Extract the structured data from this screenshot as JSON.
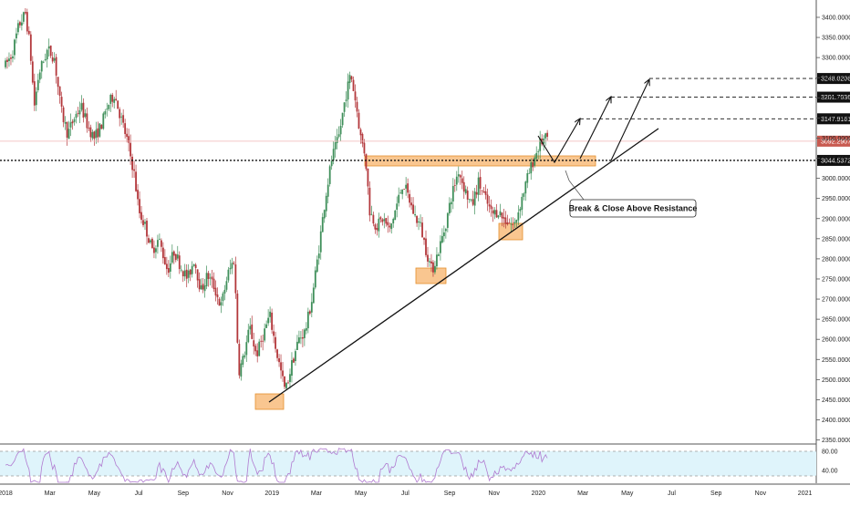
{
  "colors": {
    "up": "#3f8f5a",
    "down": "#b3373b",
    "zone_fill": "#f7b36b",
    "zone_stroke": "#e5902e",
    "rsi_fill": "#dff4fb",
    "rsi_line": "#b07ad0",
    "current_tag": "#c85a50",
    "level_tag": "#111111",
    "dotted_level": "#111111",
    "pink_level": "#f2b6b6"
  },
  "chart_data": {
    "type": "candlestick",
    "price_axis": {
      "ticks": [
        "3400.0000",
        "3350.0000",
        "3300.0000",
        "3250.0000",
        "3200.0000",
        "3150.0000",
        "3100.0000",
        "3050.0000",
        "3000.0000",
        "2950.0000",
        "2900.0000",
        "2850.0000",
        "2800.0000",
        "2750.0000",
        "2700.0000",
        "2650.0000",
        "2600.0000",
        "2550.0000",
        "2500.0000",
        "2450.0000",
        "2400.0000",
        "2350.0000"
      ],
      "range": [
        2340,
        3420
      ]
    },
    "time_axis": {
      "labels": [
        "2018",
        "Mar",
        "May",
        "Jul",
        "Sep",
        "Nov",
        "2019",
        "Mar",
        "May",
        "Jul",
        "Sep",
        "Nov",
        "2020",
        "Mar",
        "May",
        "Jul",
        "Sep",
        "Nov",
        "2021"
      ],
      "label_months": [
        0,
        2,
        4,
        6,
        8,
        10,
        12,
        14,
        16,
        18,
        20,
        22,
        24,
        26,
        28,
        30,
        32,
        34,
        36
      ]
    },
    "series": [
      {
        "type": "candles",
        "anchors": [
          [
            0.0,
            3280
          ],
          [
            0.3,
            3310
          ],
          [
            0.6,
            3380
          ],
          [
            0.9,
            3410
          ],
          [
            1.1,
            3330
          ],
          [
            1.3,
            3180
          ],
          [
            1.5,
            3260
          ],
          [
            1.9,
            3320
          ],
          [
            2.2,
            3300
          ],
          [
            2.5,
            3170
          ],
          [
            2.8,
            3110
          ],
          [
            3.1,
            3150
          ],
          [
            3.4,
            3180
          ],
          [
            3.7,
            3130
          ],
          [
            4.0,
            3100
          ],
          [
            4.3,
            3130
          ],
          [
            4.6,
            3180
          ],
          [
            4.9,
            3210
          ],
          [
            5.2,
            3150
          ],
          [
            5.5,
            3090
          ],
          [
            5.8,
            3010
          ],
          [
            6.0,
            2920
          ],
          [
            6.3,
            2880
          ],
          [
            6.6,
            2820
          ],
          [
            6.9,
            2850
          ],
          [
            7.3,
            2770
          ],
          [
            7.6,
            2820
          ],
          [
            7.9,
            2780
          ],
          [
            8.2,
            2750
          ],
          [
            8.5,
            2800
          ],
          [
            8.8,
            2720
          ],
          [
            9.1,
            2760
          ],
          [
            9.4,
            2730
          ],
          [
            9.7,
            2680
          ],
          [
            10.0,
            2760
          ],
          [
            10.3,
            2800
          ],
          [
            10.5,
            2520
          ],
          [
            10.7,
            2550
          ],
          [
            11.0,
            2630
          ],
          [
            11.3,
            2560
          ],
          [
            11.6,
            2610
          ],
          [
            11.9,
            2660
          ],
          [
            12.2,
            2570
          ],
          [
            12.4,
            2520
          ],
          [
            12.6,
            2470
          ],
          [
            12.9,
            2540
          ],
          [
            13.2,
            2600
          ],
          [
            13.5,
            2620
          ],
          [
            13.8,
            2700
          ],
          [
            14.1,
            2820
          ],
          [
            14.4,
            2950
          ],
          [
            14.7,
            3050
          ],
          [
            15.0,
            3100
          ],
          [
            15.3,
            3200
          ],
          [
            15.55,
            3260
          ],
          [
            15.8,
            3180
          ],
          [
            16.0,
            3100
          ],
          [
            16.2,
            3060
          ],
          [
            16.4,
            2920
          ],
          [
            16.7,
            2880
          ],
          [
            17.0,
            2900
          ],
          [
            17.3,
            2870
          ],
          [
            17.6,
            2930
          ],
          [
            17.9,
            2990
          ],
          [
            18.1,
            2960
          ],
          [
            18.4,
            2910
          ],
          [
            18.7,
            2880
          ],
          [
            18.9,
            2830
          ],
          [
            19.2,
            2770
          ],
          [
            19.5,
            2820
          ],
          [
            19.8,
            2880
          ],
          [
            20.1,
            2960
          ],
          [
            20.4,
            3020
          ],
          [
            20.7,
            2970
          ],
          [
            21.0,
            2930
          ],
          [
            21.3,
            2990
          ],
          [
            21.6,
            2950
          ],
          [
            21.9,
            2910
          ],
          [
            22.2,
            2920
          ],
          [
            22.4,
            2900
          ],
          [
            22.7,
            2890
          ],
          [
            22.9,
            2880
          ],
          [
            23.2,
            2940
          ],
          [
            23.5,
            3000
          ],
          [
            23.8,
            3050
          ],
          [
            24.1,
            3090
          ],
          [
            24.4,
            3100
          ]
        ],
        "ohlc_source": "approximate path read from the drawn candles"
      }
    ],
    "levels": [
      {
        "name": "last_price",
        "value": 3092.2907,
        "label": "3092.2907",
        "style": "pink-line"
      },
      {
        "name": "resistance",
        "value": 3044.5372,
        "label": "3044.5372",
        "style": "dotted"
      },
      {
        "name": "target_1",
        "value": 3147.9161,
        "label": "3147.9161",
        "style": "dashed"
      },
      {
        "name": "target_2",
        "value": 3201.7036,
        "label": "3201.7036",
        "style": "dashed"
      },
      {
        "name": "target_3",
        "value": 3248.0206,
        "label": "3248.0206",
        "style": "dashed"
      }
    ],
    "annotations": {
      "callout": "Break & Close Above Resistance"
    },
    "rsi": {
      "ticks": [
        "80.00",
        "40.00"
      ]
    }
  }
}
